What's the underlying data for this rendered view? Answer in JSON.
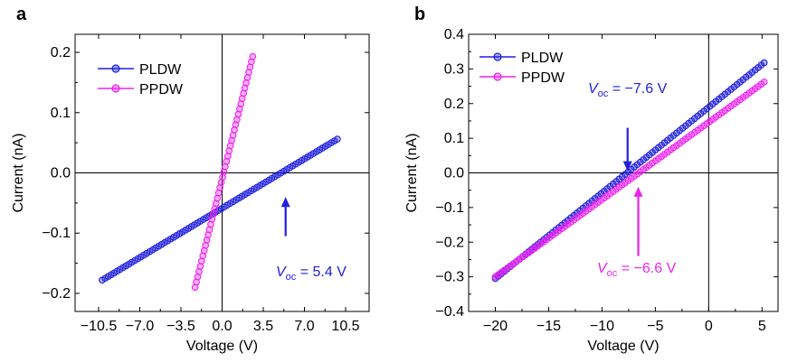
{
  "chart_data": [
    {
      "panel": "a",
      "type": "scatter",
      "title": "",
      "xlabel": "Voltage (V)",
      "ylabel": "Current (nA)",
      "xlim": [
        -12.5,
        12.5
      ],
      "ylim": [
        -0.23,
        0.23
      ],
      "xticks": [
        -10.5,
        -7.0,
        -3.5,
        0.0,
        3.5,
        7.0,
        10.5
      ],
      "xtick_labels": [
        "−10.5",
        "−7.0",
        "−3.5",
        "0.0",
        "3.5",
        "7.0",
        "10.5"
      ],
      "yticks": [
        -0.2,
        -0.1,
        0.0,
        0.1,
        0.2
      ],
      "ytick_labels": [
        "−0.2",
        "−0.1",
        "0.0",
        "0.1",
        "0.2"
      ],
      "grid": false,
      "legend_position": "top-left",
      "series": [
        {
          "name": "PLDW",
          "color": "#2020dd",
          "x_range": [
            -10.2,
            9.8
          ],
          "y_range": [
            -0.178,
            0.056
          ],
          "points": 80
        },
        {
          "name": "PPDW",
          "color": "#ee22ee",
          "x_range": [
            -2.3,
            2.6
          ],
          "y_range": [
            -0.19,
            0.193
          ],
          "points": 45
        }
      ],
      "annotations": [
        {
          "prefix": "V",
          "sub": "oc",
          "text": " = 5.4 V",
          "color": "#2020dd",
          "arrow_from": [
            5.4,
            -0.105
          ],
          "arrow_to": [
            5.4,
            -0.04
          ]
        }
      ]
    },
    {
      "panel": "b",
      "type": "scatter",
      "title": "",
      "xlabel": "Voltage (V)",
      "ylabel": "Current (nA)",
      "xlim": [
        -22.5,
        6.5
      ],
      "ylim": [
        -0.4,
        0.4
      ],
      "xticks": [
        -20,
        -15,
        -10,
        -5,
        0,
        5
      ],
      "xtick_labels": [
        "−20",
        "−15",
        "−10",
        "−5",
        "0",
        "5"
      ],
      "yticks": [
        -0.4,
        -0.3,
        -0.2,
        -0.1,
        0.0,
        0.1,
        0.2,
        0.3,
        0.4
      ],
      "ytick_labels": [
        "−0.4",
        "−0.3",
        "−0.2",
        "−0.1",
        "0.0",
        "0.1",
        "0.2",
        "0.3",
        "0.4"
      ],
      "grid": false,
      "legend_position": "top-left",
      "series": [
        {
          "name": "PLDW",
          "color": "#2020dd",
          "x_range": [
            -20,
            5.2
          ],
          "y_range": [
            -0.305,
            0.318
          ],
          "points": 90
        },
        {
          "name": "PPDW",
          "color": "#ee22ee",
          "x_range": [
            -20,
            5.2
          ],
          "y_range": [
            -0.3,
            0.262
          ],
          "points": 90
        }
      ],
      "annotations": [
        {
          "prefix": "V",
          "sub": "oc",
          "text": " = −7.6 V",
          "color": "#2020dd",
          "arrow_from": [
            -7.6,
            0.13
          ],
          "arrow_to": [
            -7.6,
            0.005
          ]
        },
        {
          "prefix": "V",
          "sub": "oc",
          "text": " = −6.6 V",
          "color": "#ee22ee",
          "arrow_from": [
            -6.6,
            -0.24
          ],
          "arrow_to": [
            -6.6,
            -0.04
          ]
        }
      ]
    }
  ]
}
